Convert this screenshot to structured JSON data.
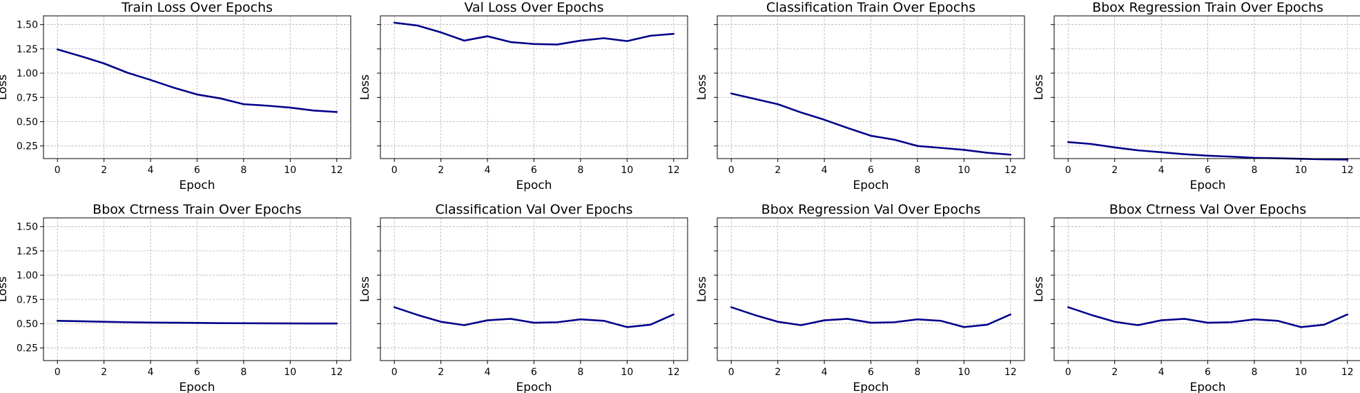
{
  "colors": {
    "line": "#00008b"
  },
  "chart_data": [
    {
      "type": "line",
      "title": "Train Loss Over Epochs",
      "xlabel": "Epoch",
      "ylabel": "Loss",
      "x": [
        0,
        1,
        2,
        3,
        4,
        5,
        6,
        7,
        8,
        9,
        10,
        11,
        12
      ],
      "values": [
        1.245,
        1.175,
        1.1,
        1.005,
        0.93,
        0.85,
        0.78,
        0.74,
        0.68,
        0.665,
        0.645,
        0.615,
        0.6
      ],
      "xlim": [
        -0.6,
        12.6
      ],
      "ylim": [
        0.12,
        1.59
      ],
      "xticks": [
        0,
        2,
        4,
        6,
        8,
        10,
        12
      ],
      "yticks": [
        0.25,
        0.5,
        0.75,
        1.0,
        1.25,
        1.5
      ],
      "ytick_labels": [
        "0.25",
        "0.50",
        "0.75",
        "1.00",
        "1.25",
        "1.50"
      ],
      "show_yticklabels": true,
      "grid": true
    },
    {
      "type": "line",
      "title": "Val Loss Over Epochs",
      "xlabel": "Epoch",
      "ylabel": "Loss",
      "x": [
        0,
        1,
        2,
        3,
        4,
        5,
        6,
        7,
        8,
        9,
        10,
        11,
        12
      ],
      "values": [
        1.52,
        1.49,
        1.42,
        1.335,
        1.38,
        1.32,
        1.3,
        1.295,
        1.335,
        1.36,
        1.33,
        1.385,
        1.405
      ],
      "xlim": [
        -0.6,
        12.6
      ],
      "ylim": [
        0.12,
        1.59
      ],
      "xticks": [
        0,
        2,
        4,
        6,
        8,
        10,
        12
      ],
      "yticks": [
        0.25,
        0.5,
        0.75,
        1.0,
        1.25,
        1.5
      ],
      "show_yticklabels": false,
      "grid": true
    },
    {
      "type": "line",
      "title": "Classification Train Over Epochs",
      "xlabel": "Epoch",
      "ylabel": "Loss",
      "x": [
        0,
        1,
        2,
        3,
        4,
        5,
        6,
        7,
        8,
        9,
        10,
        11,
        12
      ],
      "values": [
        0.79,
        0.735,
        0.68,
        0.595,
        0.52,
        0.435,
        0.355,
        0.315,
        0.25,
        0.23,
        0.21,
        0.18,
        0.16
      ],
      "xlim": [
        -0.6,
        12.6
      ],
      "ylim": [
        0.12,
        1.59
      ],
      "xticks": [
        0,
        2,
        4,
        6,
        8,
        10,
        12
      ],
      "yticks": [
        0.25,
        0.5,
        0.75,
        1.0,
        1.25,
        1.5
      ],
      "show_yticklabels": false,
      "grid": true
    },
    {
      "type": "line",
      "title": "Bbox Regression Train Over Epochs",
      "xlabel": "Epoch",
      "ylabel": "Loss",
      "x": [
        0,
        1,
        2,
        3,
        4,
        5,
        6,
        7,
        8,
        9,
        10,
        11,
        12
      ],
      "values": [
        0.29,
        0.27,
        0.235,
        0.205,
        0.185,
        0.165,
        0.15,
        0.14,
        0.128,
        0.123,
        0.118,
        0.112,
        0.11
      ],
      "xlim": [
        -0.6,
        12.6
      ],
      "ylim": [
        0.12,
        1.59
      ],
      "xticks": [
        0,
        2,
        4,
        6,
        8,
        10,
        12
      ],
      "yticks": [
        0.25,
        0.5,
        0.75,
        1.0,
        1.25,
        1.5
      ],
      "show_yticklabels": false,
      "grid": true
    },
    {
      "type": "line",
      "title": "Bbox Ctrness Train Over Epochs",
      "xlabel": "Epoch",
      "ylabel": "Loss",
      "x": [
        0,
        1,
        2,
        3,
        4,
        5,
        6,
        7,
        8,
        9,
        10,
        11,
        12
      ],
      "values": [
        0.53,
        0.525,
        0.52,
        0.515,
        0.512,
        0.51,
        0.508,
        0.506,
        0.505,
        0.504,
        0.503,
        0.502,
        0.502
      ],
      "xlim": [
        -0.6,
        12.6
      ],
      "ylim": [
        0.12,
        1.59
      ],
      "xticks": [
        0,
        2,
        4,
        6,
        8,
        10,
        12
      ],
      "yticks": [
        0.25,
        0.5,
        0.75,
        1.0,
        1.25,
        1.5
      ],
      "ytick_labels": [
        "0.25",
        "0.50",
        "0.75",
        "1.00",
        "1.25",
        "1.50"
      ],
      "show_yticklabels": true,
      "grid": true
    },
    {
      "type": "line",
      "title": "Classification Val Over Epochs",
      "xlabel": "Epoch",
      "ylabel": "Loss",
      "x": [
        0,
        1,
        2,
        3,
        4,
        5,
        6,
        7,
        8,
        9,
        10,
        11,
        12
      ],
      "values": [
        0.67,
        0.59,
        0.52,
        0.485,
        0.535,
        0.55,
        0.51,
        0.515,
        0.545,
        0.53,
        0.465,
        0.49,
        0.595
      ],
      "xlim": [
        -0.6,
        12.6
      ],
      "ylim": [
        0.12,
        1.59
      ],
      "xticks": [
        0,
        2,
        4,
        6,
        8,
        10,
        12
      ],
      "yticks": [
        0.25,
        0.5,
        0.75,
        1.0,
        1.25,
        1.5
      ],
      "show_yticklabels": false,
      "grid": true
    },
    {
      "type": "line",
      "title": "Bbox Regression Val Over Epochs",
      "xlabel": "Epoch",
      "ylabel": "Loss",
      "x": [
        0,
        1,
        2,
        3,
        4,
        5,
        6,
        7,
        8,
        9,
        10,
        11,
        12
      ],
      "values": [
        0.67,
        0.59,
        0.52,
        0.485,
        0.535,
        0.55,
        0.51,
        0.515,
        0.545,
        0.53,
        0.465,
        0.49,
        0.595
      ],
      "xlim": [
        -0.6,
        12.6
      ],
      "ylim": [
        0.12,
        1.59
      ],
      "xticks": [
        0,
        2,
        4,
        6,
        8,
        10,
        12
      ],
      "yticks": [
        0.25,
        0.5,
        0.75,
        1.0,
        1.25,
        1.5
      ],
      "show_yticklabels": false,
      "grid": true
    },
    {
      "type": "line",
      "title": "Bbox Ctrness Val Over Epochs",
      "xlabel": "Epoch",
      "ylabel": "Loss",
      "x": [
        0,
        1,
        2,
        3,
        4,
        5,
        6,
        7,
        8,
        9,
        10,
        11,
        12
      ],
      "values": [
        0.67,
        0.59,
        0.52,
        0.485,
        0.535,
        0.55,
        0.51,
        0.515,
        0.545,
        0.53,
        0.465,
        0.49,
        0.595
      ],
      "xlim": [
        -0.6,
        12.6
      ],
      "ylim": [
        0.12,
        1.59
      ],
      "xticks": [
        0,
        2,
        4,
        6,
        8,
        10,
        12
      ],
      "yticks": [
        0.25,
        0.5,
        0.75,
        1.0,
        1.25,
        1.5
      ],
      "show_yticklabels": false,
      "grid": true
    }
  ]
}
